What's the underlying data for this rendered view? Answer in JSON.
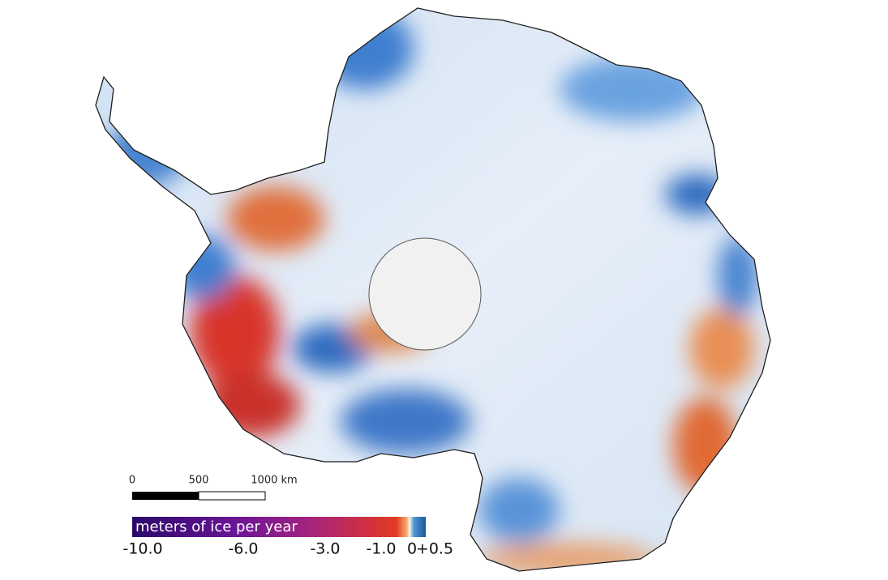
{
  "scale_bar": {
    "labels": [
      "0",
      "500",
      "1000 km"
    ]
  },
  "legend": {
    "title": "meters of ice per year",
    "ticks": [
      "-10.0",
      "-6.0",
      "-3.0",
      "-1.0",
      "0",
      "+0.5"
    ]
  }
}
